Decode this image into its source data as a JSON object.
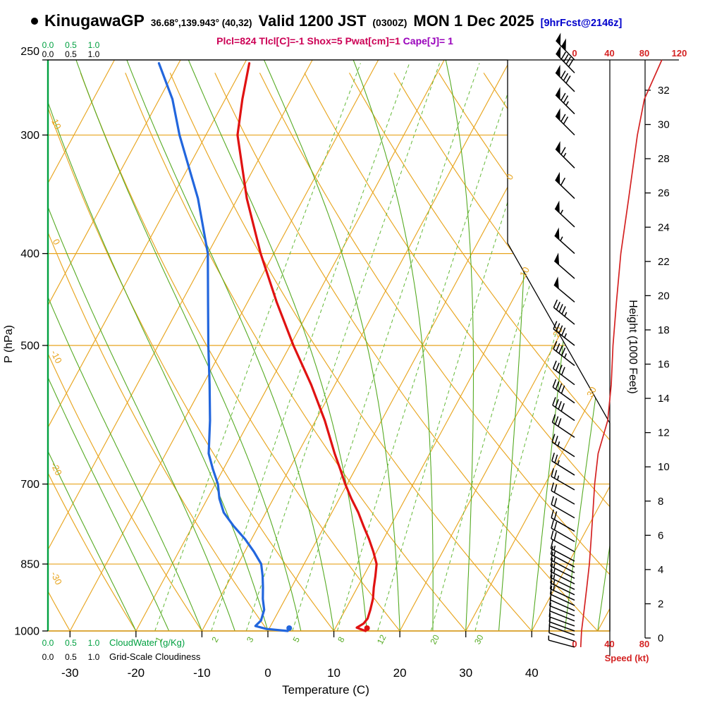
{
  "header": {
    "station_name": "KinugawaGP",
    "coords": "36.68°,139.943° (40,32)",
    "valid_main": "Valid 1200 JST",
    "valid_z": "(0300Z)",
    "valid_date": "MON 1 Dec 2025",
    "fcst_tag": "[9hrFcst@2146z]"
  },
  "indices": {
    "main": "Plcl=824 Tlcl[C]=-1 Shox=5 Pwat[cm]=1",
    "cape": "Cape[J]= 1"
  },
  "axes": {
    "pressure_label": "P (hPa)",
    "pressure_ticks_hpa": [
      250,
      300,
      400,
      500,
      700,
      850,
      1000
    ],
    "temperature_label": "Temperature (C)",
    "temperature_ticks_c": [
      -30,
      -20,
      -10,
      0,
      10,
      20,
      30,
      40
    ],
    "height_label": "Height (1000 Feet)",
    "height_ticks_kft": [
      0,
      2,
      4,
      6,
      8,
      10,
      12,
      14,
      16,
      18,
      20,
      22,
      24,
      26,
      28,
      30,
      32
    ],
    "speed_label": "Speed (kt)",
    "speed_ticks_top_kt": [
      0,
      40,
      80,
      120
    ],
    "speed_ticks_bottom_kt": [
      0,
      40,
      80
    ],
    "cloudwater_label": "CloudWater (g/Kg)",
    "cloudiness_label": "Grid-Scale Cloudiness",
    "cloud_scale": [
      "0.0",
      "0.5",
      "1.0"
    ]
  },
  "colors": {
    "temperature": "#e01212",
    "dewpoint": "#2266dd",
    "grid": "#e8a51f",
    "moist": "#55aa22",
    "mixing": "#63b836",
    "cloud_axis": "#00a040",
    "speed": "#d42222",
    "barb": "#000000",
    "indices": "#cc0055",
    "cape": "#9900bb",
    "forecast_tag": "#0000cc"
  },
  "chart_data": {
    "type": "skewt-logp-sounding",
    "pressure_range_hpa": [
      250,
      1000
    ],
    "temperature_axis_range_c": [
      -30,
      40
    ],
    "isotherm_step_c": 10,
    "dry_adiabat_step_c": 10,
    "dry_adiabat_labels_c": [
      10,
      0,
      -10,
      -20,
      -30
    ],
    "isotherm_labels_right_c": [
      0,
      10,
      20,
      30
    ],
    "moist_adiabat_surface_temps_c": [
      -20,
      -15,
      -10,
      -5,
      0,
      5,
      10,
      15,
      20,
      25,
      30,
      35,
      40,
      45,
      50
    ],
    "mixing_ratio_lines_gkg": [
      1,
      2,
      3,
      5,
      8,
      12,
      20,
      30
    ],
    "temperature_profile": {
      "pressure_hpa": [
        1000,
        992,
        982,
        970,
        950,
        925,
        900,
        875,
        850,
        825,
        800,
        775,
        750,
        725,
        700,
        675,
        650,
        600,
        550,
        500,
        450,
        400,
        350,
        300,
        275,
        252
      ],
      "temp_c": [
        14.8,
        13.2,
        13.9,
        14.1,
        13.8,
        13.3,
        12.5,
        11.8,
        11.0,
        9.5,
        7.8,
        5.9,
        4.0,
        1.8,
        -0.3,
        -2.3,
        -4.4,
        -8.6,
        -13.6,
        -19.5,
        -25.6,
        -32.0,
        -38.6,
        -45.2,
        -47.4,
        -49.3
      ]
    },
    "dewpoint_profile": {
      "pressure_hpa": [
        1000,
        995,
        988,
        975,
        950,
        925,
        900,
        875,
        850,
        825,
        800,
        775,
        750,
        725,
        700,
        675,
        650,
        600,
        550,
        500,
        450,
        400,
        350,
        300,
        275,
        252
      ],
      "dewpoint_c": [
        3.0,
        -0.4,
        -2.3,
        -1.9,
        -2.3,
        -3.4,
        -4.3,
        -5.3,
        -6.5,
        -8.6,
        -11.0,
        -13.8,
        -16.4,
        -18.2,
        -19.6,
        -21.6,
        -23.5,
        -26.0,
        -29.0,
        -32.4,
        -36.0,
        -40.0,
        -46.0,
        -54.0,
        -58.0,
        -63.0
      ]
    },
    "wind_barbs_p_kt_dir": [
      [
        1040,
        7,
        285
      ],
      [
        1025,
        8,
        288
      ],
      [
        1010,
        8,
        290
      ],
      [
        1000,
        8,
        290
      ],
      [
        988,
        9,
        290
      ],
      [
        976,
        10,
        292
      ],
      [
        964,
        10,
        292
      ],
      [
        952,
        11,
        294
      ],
      [
        940,
        12,
        295
      ],
      [
        928,
        13,
        295
      ],
      [
        916,
        13,
        296
      ],
      [
        904,
        14,
        296
      ],
      [
        892,
        15,
        297
      ],
      [
        880,
        15,
        297
      ],
      [
        868,
        16,
        298
      ],
      [
        856,
        16,
        298
      ],
      [
        844,
        17,
        298
      ],
      [
        825,
        18,
        299
      ],
      [
        805,
        19,
        300
      ],
      [
        785,
        20,
        300
      ],
      [
        760,
        21,
        300
      ],
      [
        735,
        22,
        300
      ],
      [
        710,
        23,
        300
      ],
      [
        685,
        24,
        302
      ],
      [
        655,
        27,
        303
      ],
      [
        625,
        32,
        304
      ],
      [
        600,
        38,
        305
      ],
      [
        575,
        40,
        306
      ],
      [
        550,
        42,
        307
      ],
      [
        525,
        43,
        308
      ],
      [
        500,
        44,
        308
      ],
      [
        475,
        46,
        309
      ],
      [
        450,
        48,
        310
      ],
      [
        425,
        50,
        311
      ],
      [
        400,
        53,
        312
      ],
      [
        375,
        57,
        313
      ],
      [
        350,
        62,
        314
      ],
      [
        325,
        67,
        315
      ],
      [
        300,
        72,
        315
      ],
      [
        285,
        76,
        315
      ],
      [
        270,
        82,
        315
      ],
      [
        258,
        90,
        316
      ],
      [
        250,
        100,
        316
      ]
    ],
    "speed_profile": {
      "pressure_hpa": [
        1040,
        1000,
        950,
        900,
        850,
        800,
        750,
        700,
        650,
        600,
        550,
        500,
        450,
        400,
        350,
        300,
        275,
        250
      ],
      "speed_kt": [
        7,
        8,
        11,
        14,
        17,
        19,
        21,
        23,
        27,
        38,
        42,
        44,
        48,
        53,
        62,
        72,
        80,
        100
      ]
    }
  }
}
